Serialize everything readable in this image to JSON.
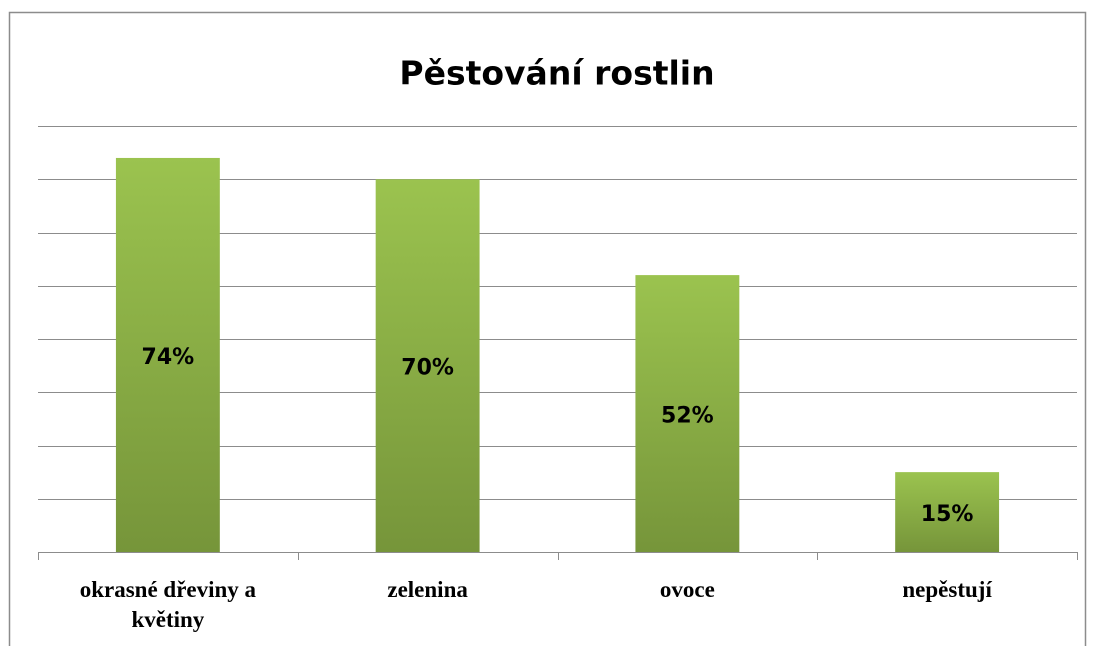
{
  "chart_data": {
    "type": "bar",
    "title": "Pěstování rostlin",
    "categories": [
      "okrasné dřeviny a květiny",
      "zelenina",
      "ovoce",
      "nepěstují"
    ],
    "values": [
      74,
      70,
      52,
      15
    ],
    "value_labels": [
      "74%",
      "70%",
      "52%",
      "15%"
    ],
    "color": "#9bc34f",
    "ylim": [
      0,
      80
    ],
    "yticks": [
      0,
      10,
      20,
      30,
      40,
      50,
      60,
      70,
      80
    ],
    "grid": true
  }
}
